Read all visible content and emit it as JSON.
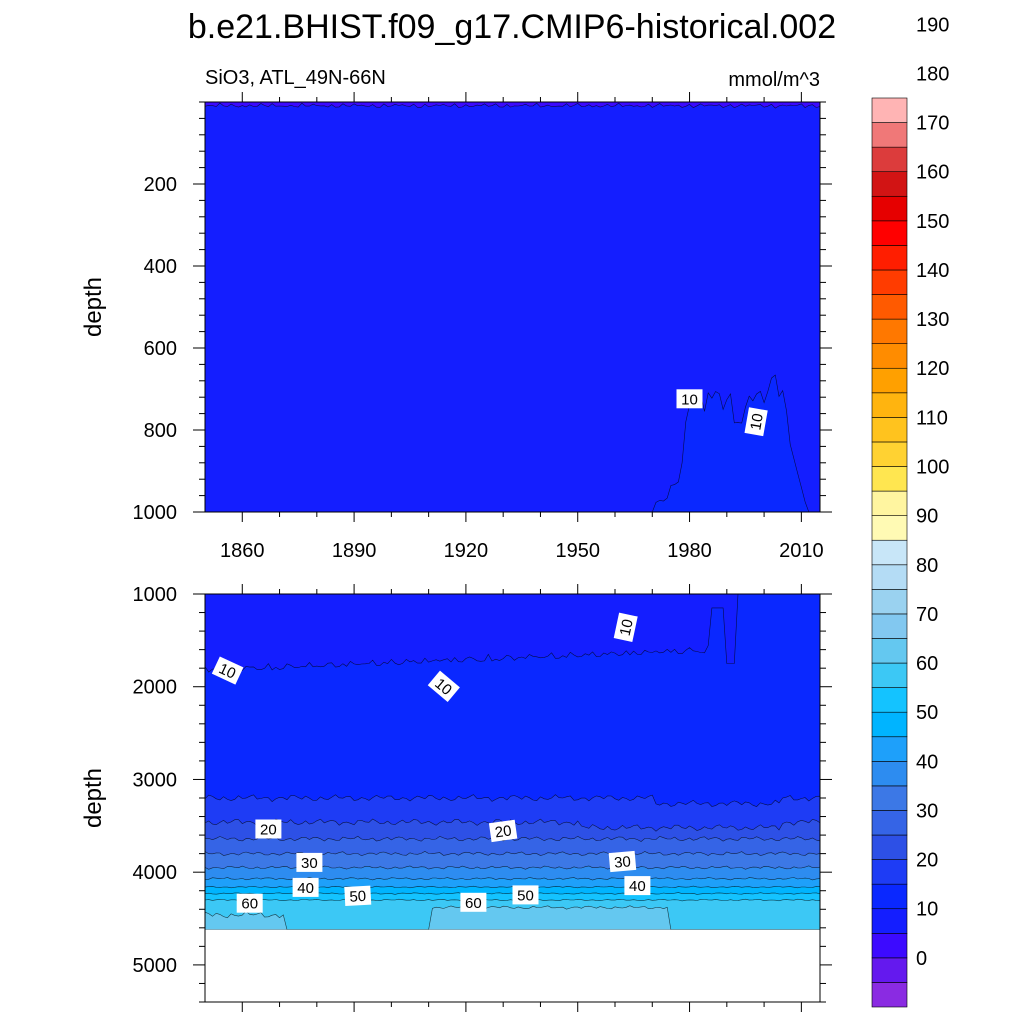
{
  "chart_data": {
    "type": "heatmap",
    "title": "b.e21.BHIST.f09_g17.CMIP6-historical.002",
    "variable": "SiO3, ATL_49N-66N",
    "units": "mmol/m^3",
    "panels": [
      {
        "name": "upper",
        "ylabel": "depth",
        "ylim": [
          0,
          1000
        ],
        "yticks": [
          "200",
          "400",
          "600",
          "800",
          "1000"
        ],
        "xlim": [
          1850,
          2015
        ],
        "xticks": [
          "1860",
          "1890",
          "1920",
          "1950",
          "1980",
          "2010"
        ],
        "contour_labels": [
          "10",
          "10"
        ]
      },
      {
        "name": "lower",
        "ylabel": "depth",
        "ylim": [
          1000,
          5400
        ],
        "yticks": [
          "1000",
          "2000",
          "3000",
          "4000",
          "5000"
        ],
        "xlim": [
          1850,
          2015
        ],
        "xticks": [],
        "contour_labels": [
          "10",
          "10",
          "10",
          "20",
          "20",
          "30",
          "30",
          "40",
          "40",
          "50",
          "50",
          "60",
          "60"
        ]
      }
    ],
    "colorbar": {
      "levels_min": -10,
      "levels_step": 5,
      "colors": [
        "#8a2be2",
        "#6419ee",
        "#3c0aff",
        "#141eff",
        "#0a28ff",
        "#1e3cf5",
        "#2d50e6",
        "#3564e6",
        "#3c78e6",
        "#2d8cf0",
        "#1ea0fa",
        "#00b4ff",
        "#14c3ff",
        "#3cc8f5",
        "#64c8f0",
        "#82c8f0",
        "#9ad2f0",
        "#b4dcf5",
        "#c8e6f8",
        "#fffab4",
        "#fff5a0",
        "#ffe650",
        "#ffd232",
        "#ffc31e",
        "#ffb40f",
        "#ffa000",
        "#ff8c00",
        "#ff7800",
        "#ff5a00",
        "#ff3c00",
        "#ff1e00",
        "#ff0000",
        "#e60000",
        "#d21414",
        "#dc3c3c",
        "#f07878",
        "#ffb4b4"
      ],
      "tick_labels": [
        "0",
        "10",
        "20",
        "30",
        "40",
        "50",
        "60",
        "70",
        "80",
        "90",
        "100",
        "110",
        "120",
        "130",
        "140",
        "150",
        "160",
        "170",
        "180",
        "190"
      ]
    }
  }
}
